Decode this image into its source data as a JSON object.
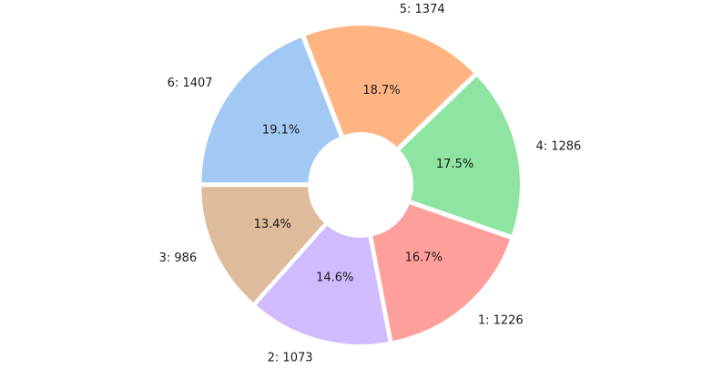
{
  "chart_data": {
    "type": "pie",
    "donut": true,
    "start_angle_deg": 180,
    "direction": "counterclockwise",
    "slices": [
      {
        "label": "3: 986",
        "value": 986,
        "percent_label": "13.4%",
        "color": "#debb9b"
      },
      {
        "label": "2: 1073",
        "value": 1073,
        "percent_label": "14.6%",
        "color": "#d0bbff"
      },
      {
        "label": "1: 1226",
        "value": 1226,
        "percent_label": "16.7%",
        "color": "#ff9f9b"
      },
      {
        "label": "4: 1286",
        "value": 1286,
        "percent_label": "17.5%",
        "color": "#8de5a1"
      },
      {
        "label": "5: 1374",
        "value": 1374,
        "percent_label": "18.7%",
        "color": "#ffb482"
      },
      {
        "label": "6: 1407",
        "value": 1407,
        "percent_label": "19.1%",
        "color": "#a1c9f4"
      }
    ]
  }
}
